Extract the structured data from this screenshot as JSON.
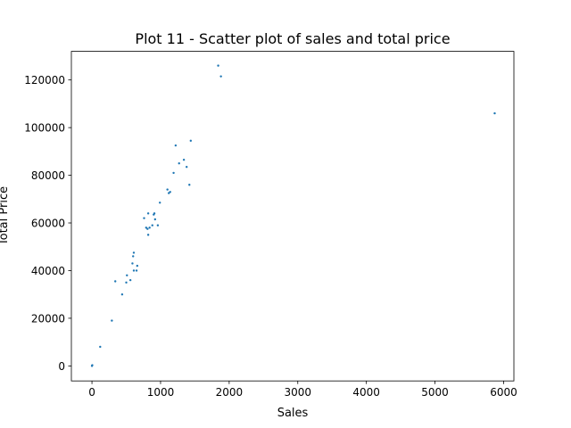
{
  "chart_data": {
    "type": "scatter",
    "title": "Plot 11 - Scatter plot of sales and total price",
    "xlabel": "Sales",
    "ylabel": "Total Price",
    "xlim": [
      -300,
      6150
    ],
    "ylim": [
      -6300,
      132000
    ],
    "xticks": [
      0,
      1000,
      2000,
      3000,
      4000,
      5000,
      6000
    ],
    "yticks": [
      0,
      20000,
      40000,
      60000,
      80000,
      100000,
      120000
    ],
    "xtick_labels": [
      "0",
      "1000",
      "2000",
      "3000",
      "4000",
      "5000",
      "6000"
    ],
    "ytick_labels": [
      "0",
      "20000",
      "40000",
      "60000",
      "80000",
      "100000",
      "120000"
    ],
    "grid": false,
    "legend": "none",
    "color": "#1f77b4",
    "points": [
      {
        "x": 0,
        "y": 0
      },
      {
        "x": 5,
        "y": 300
      },
      {
        "x": 120,
        "y": 8000
      },
      {
        "x": 290,
        "y": 19000
      },
      {
        "x": 340,
        "y": 35500
      },
      {
        "x": 440,
        "y": 30000
      },
      {
        "x": 500,
        "y": 35000
      },
      {
        "x": 510,
        "y": 38000
      },
      {
        "x": 560,
        "y": 36000
      },
      {
        "x": 590,
        "y": 43000
      },
      {
        "x": 600,
        "y": 46000
      },
      {
        "x": 610,
        "y": 47500
      },
      {
        "x": 610,
        "y": 40000
      },
      {
        "x": 650,
        "y": 40000
      },
      {
        "x": 660,
        "y": 42000
      },
      {
        "x": 760,
        "y": 62000
      },
      {
        "x": 790,
        "y": 58000
      },
      {
        "x": 810,
        "y": 57500
      },
      {
        "x": 820,
        "y": 55000
      },
      {
        "x": 820,
        "y": 64000
      },
      {
        "x": 840,
        "y": 58000
      },
      {
        "x": 880,
        "y": 59000
      },
      {
        "x": 900,
        "y": 63500
      },
      {
        "x": 910,
        "y": 64000
      },
      {
        "x": 920,
        "y": 61500
      },
      {
        "x": 960,
        "y": 59000
      },
      {
        "x": 990,
        "y": 68500
      },
      {
        "x": 1100,
        "y": 74000
      },
      {
        "x": 1120,
        "y": 72500
      },
      {
        "x": 1140,
        "y": 73000
      },
      {
        "x": 1190,
        "y": 81000
      },
      {
        "x": 1220,
        "y": 92500
      },
      {
        "x": 1270,
        "y": 85000
      },
      {
        "x": 1340,
        "y": 86500
      },
      {
        "x": 1380,
        "y": 83500
      },
      {
        "x": 1420,
        "y": 76000
      },
      {
        "x": 1440,
        "y": 94500
      },
      {
        "x": 1840,
        "y": 126000
      },
      {
        "x": 1880,
        "y": 121500
      },
      {
        "x": 5870,
        "y": 106000
      }
    ]
  }
}
